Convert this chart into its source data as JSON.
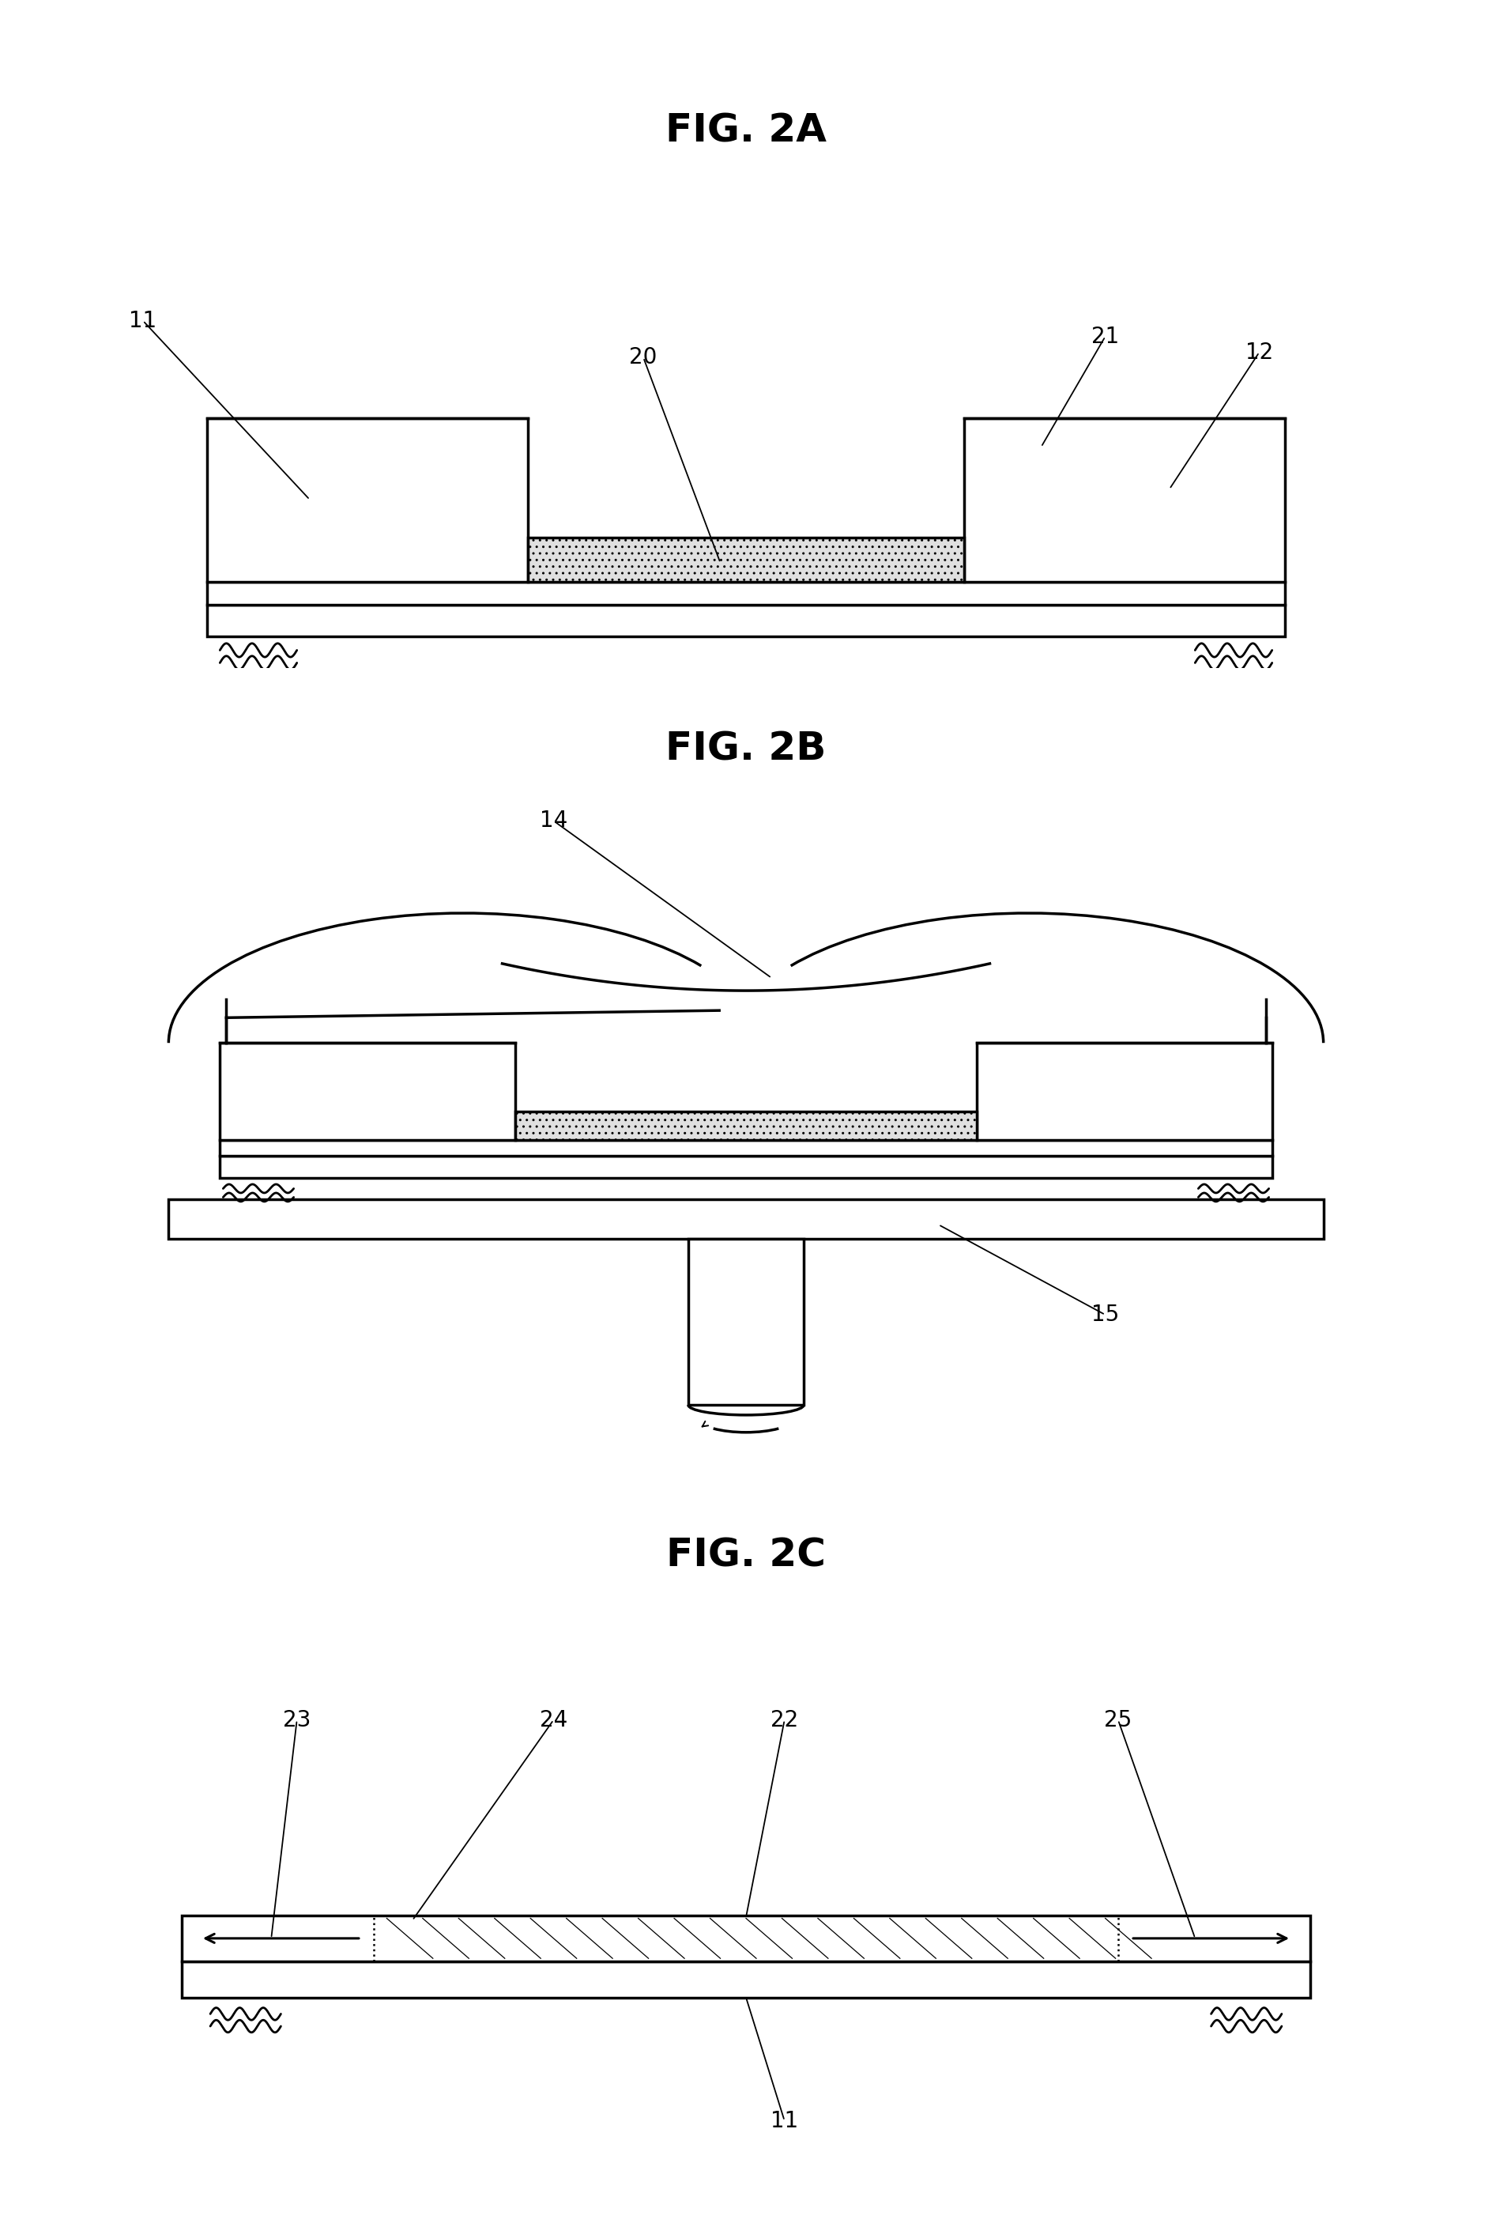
{
  "title_2A": "FIG. 2A",
  "title_2B": "FIG. 2B",
  "title_2C": "FIG. 2C",
  "bg_color": "#ffffff",
  "line_color": "#000000",
  "lw": 2.5,
  "label_fontsize": 20,
  "title_fontsize": 36
}
